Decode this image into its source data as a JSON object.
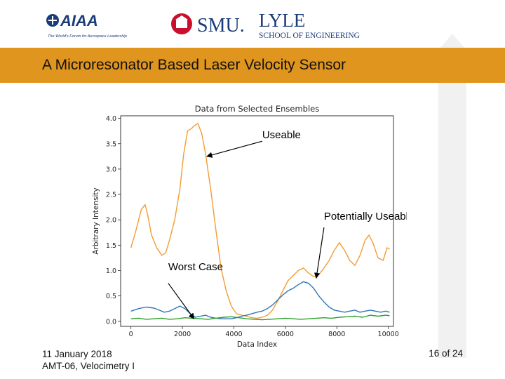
{
  "header": {
    "aiaa_logo_text": "AIAA",
    "aiaa_tagline": "The World's Forum for Aerospace Leadership",
    "smu_text": "SMU.",
    "lyle_text": "LYLE",
    "school_text": "SCHOOL OF ENGINEERING",
    "banner_title": "A Microresonator Based Laser Velocity Sensor"
  },
  "colors": {
    "banner": "#e0951e",
    "orange_series": "#f39c34",
    "blue_series": "#2f77b4",
    "green_series": "#2ca02c",
    "smu_red": "#c8102e"
  },
  "footer": {
    "date": "11 January 2018",
    "session": "AMT-06, Velocimetry I",
    "page": "16 of 24"
  },
  "chart_data": {
    "type": "line",
    "title": "Data from Selected Ensembles",
    "xlabel": "Data Index",
    "ylabel": "Arbitrary Intensity",
    "xlim": [
      -400,
      10200
    ],
    "ylim": [
      -0.1,
      4.05
    ],
    "xticks": [
      "0",
      "2000",
      "4000",
      "6000",
      "8000",
      "10000"
    ],
    "yticks": [
      "0.0",
      "0.5",
      "1.0",
      "1.5",
      "2.0",
      "2.5",
      "3.0",
      "3.5",
      "4.0"
    ],
    "grid": false,
    "series": [
      {
        "color_key": "orange_series",
        "points": [
          [
            0,
            1.45
          ],
          [
            200,
            1.8
          ],
          [
            400,
            2.2
          ],
          [
            550,
            2.3
          ],
          [
            650,
            2.1
          ],
          [
            800,
            1.7
          ],
          [
            1000,
            1.45
          ],
          [
            1200,
            1.3
          ],
          [
            1350,
            1.35
          ],
          [
            1500,
            1.6
          ],
          [
            1700,
            2.0
          ],
          [
            1900,
            2.6
          ],
          [
            2050,
            3.3
          ],
          [
            2200,
            3.75
          ],
          [
            2350,
            3.8
          ],
          [
            2450,
            3.85
          ],
          [
            2600,
            3.9
          ],
          [
            2750,
            3.7
          ],
          [
            2900,
            3.3
          ],
          [
            3100,
            2.6
          ],
          [
            3300,
            1.8
          ],
          [
            3500,
            1.05
          ],
          [
            3700,
            0.6
          ],
          [
            3900,
            0.3
          ],
          [
            4100,
            0.15
          ],
          [
            4300,
            0.12
          ],
          [
            4500,
            0.1
          ],
          [
            4700,
            0.07
          ],
          [
            4900,
            0.06
          ],
          [
            5100,
            0.08
          ],
          [
            5300,
            0.12
          ],
          [
            5500,
            0.22
          ],
          [
            5700,
            0.4
          ],
          [
            5900,
            0.6
          ],
          [
            6100,
            0.8
          ],
          [
            6300,
            0.9
          ],
          [
            6500,
            1.0
          ],
          [
            6700,
            1.05
          ],
          [
            6900,
            0.95
          ],
          [
            7100,
            0.88
          ],
          [
            7300,
            0.92
          ],
          [
            7500,
            1.05
          ],
          [
            7700,
            1.2
          ],
          [
            7900,
            1.4
          ],
          [
            8100,
            1.55
          ],
          [
            8300,
            1.4
          ],
          [
            8500,
            1.2
          ],
          [
            8700,
            1.1
          ],
          [
            8900,
            1.3
          ],
          [
            9100,
            1.6
          ],
          [
            9250,
            1.7
          ],
          [
            9400,
            1.55
          ],
          [
            9600,
            1.25
          ],
          [
            9800,
            1.2
          ],
          [
            9950,
            1.45
          ],
          [
            10050,
            1.42
          ]
        ]
      },
      {
        "color_key": "blue_series",
        "points": [
          [
            0,
            0.2
          ],
          [
            300,
            0.25
          ],
          [
            600,
            0.28
          ],
          [
            900,
            0.26
          ],
          [
            1100,
            0.22
          ],
          [
            1300,
            0.18
          ],
          [
            1500,
            0.2
          ],
          [
            1700,
            0.25
          ],
          [
            1900,
            0.3
          ],
          [
            2100,
            0.25
          ],
          [
            2300,
            0.15
          ],
          [
            2500,
            0.08
          ],
          [
            2700,
            0.1
          ],
          [
            2900,
            0.12
          ],
          [
            3100,
            0.08
          ],
          [
            3300,
            0.06
          ],
          [
            3500,
            0.05
          ],
          [
            3700,
            0.05
          ],
          [
            3900,
            0.05
          ],
          [
            4100,
            0.07
          ],
          [
            4300,
            0.1
          ],
          [
            4500,
            0.12
          ],
          [
            4700,
            0.15
          ],
          [
            4900,
            0.18
          ],
          [
            5100,
            0.2
          ],
          [
            5300,
            0.25
          ],
          [
            5500,
            0.32
          ],
          [
            5700,
            0.42
          ],
          [
            5900,
            0.52
          ],
          [
            6100,
            0.6
          ],
          [
            6300,
            0.65
          ],
          [
            6500,
            0.72
          ],
          [
            6700,
            0.78
          ],
          [
            6900,
            0.75
          ],
          [
            7100,
            0.65
          ],
          [
            7300,
            0.5
          ],
          [
            7500,
            0.38
          ],
          [
            7700,
            0.28
          ],
          [
            7900,
            0.22
          ],
          [
            8100,
            0.2
          ],
          [
            8300,
            0.18
          ],
          [
            8500,
            0.2
          ],
          [
            8700,
            0.22
          ],
          [
            8900,
            0.18
          ],
          [
            9100,
            0.2
          ],
          [
            9300,
            0.22
          ],
          [
            9500,
            0.2
          ],
          [
            9700,
            0.18
          ],
          [
            9900,
            0.2
          ],
          [
            10050,
            0.18
          ]
        ]
      },
      {
        "color_key": "green_series",
        "points": [
          [
            0,
            0.05
          ],
          [
            300,
            0.06
          ],
          [
            600,
            0.04
          ],
          [
            900,
            0.05
          ],
          [
            1200,
            0.06
          ],
          [
            1500,
            0.04
          ],
          [
            1800,
            0.05
          ],
          [
            2100,
            0.07
          ],
          [
            2400,
            0.06
          ],
          [
            2700,
            0.05
          ],
          [
            3000,
            0.04
          ],
          [
            3300,
            0.06
          ],
          [
            3600,
            0.08
          ],
          [
            3900,
            0.09
          ],
          [
            4200,
            0.07
          ],
          [
            4500,
            0.05
          ],
          [
            4800,
            0.04
          ],
          [
            5100,
            0.03
          ],
          [
            5400,
            0.04
          ],
          [
            5700,
            0.05
          ],
          [
            6000,
            0.06
          ],
          [
            6300,
            0.05
          ],
          [
            6600,
            0.04
          ],
          [
            6900,
            0.05
          ],
          [
            7200,
            0.06
          ],
          [
            7500,
            0.07
          ],
          [
            7800,
            0.06
          ],
          [
            8100,
            0.08
          ],
          [
            8400,
            0.09
          ],
          [
            8700,
            0.1
          ],
          [
            9000,
            0.08
          ],
          [
            9300,
            0.12
          ],
          [
            9600,
            0.1
          ],
          [
            9900,
            0.12
          ],
          [
            10050,
            0.11
          ]
        ]
      }
    ],
    "annotations": [
      {
        "text": "Useable",
        "text_at": [
          5100,
          3.55
        ],
        "arrow_from": [
          5100,
          3.55
        ],
        "arrow_to": [
          2950,
          3.25
        ]
      },
      {
        "text": "Potentially Useable",
        "text_at": [
          7500,
          1.95
        ],
        "arrow_from": [
          7500,
          1.85
        ],
        "arrow_to": [
          7200,
          0.85
        ]
      },
      {
        "text": "Worst Case",
        "text_at": [
          1450,
          0.95
        ],
        "arrow_from": [
          1450,
          0.75
        ],
        "arrow_to": [
          2450,
          0.05
        ]
      }
    ]
  }
}
